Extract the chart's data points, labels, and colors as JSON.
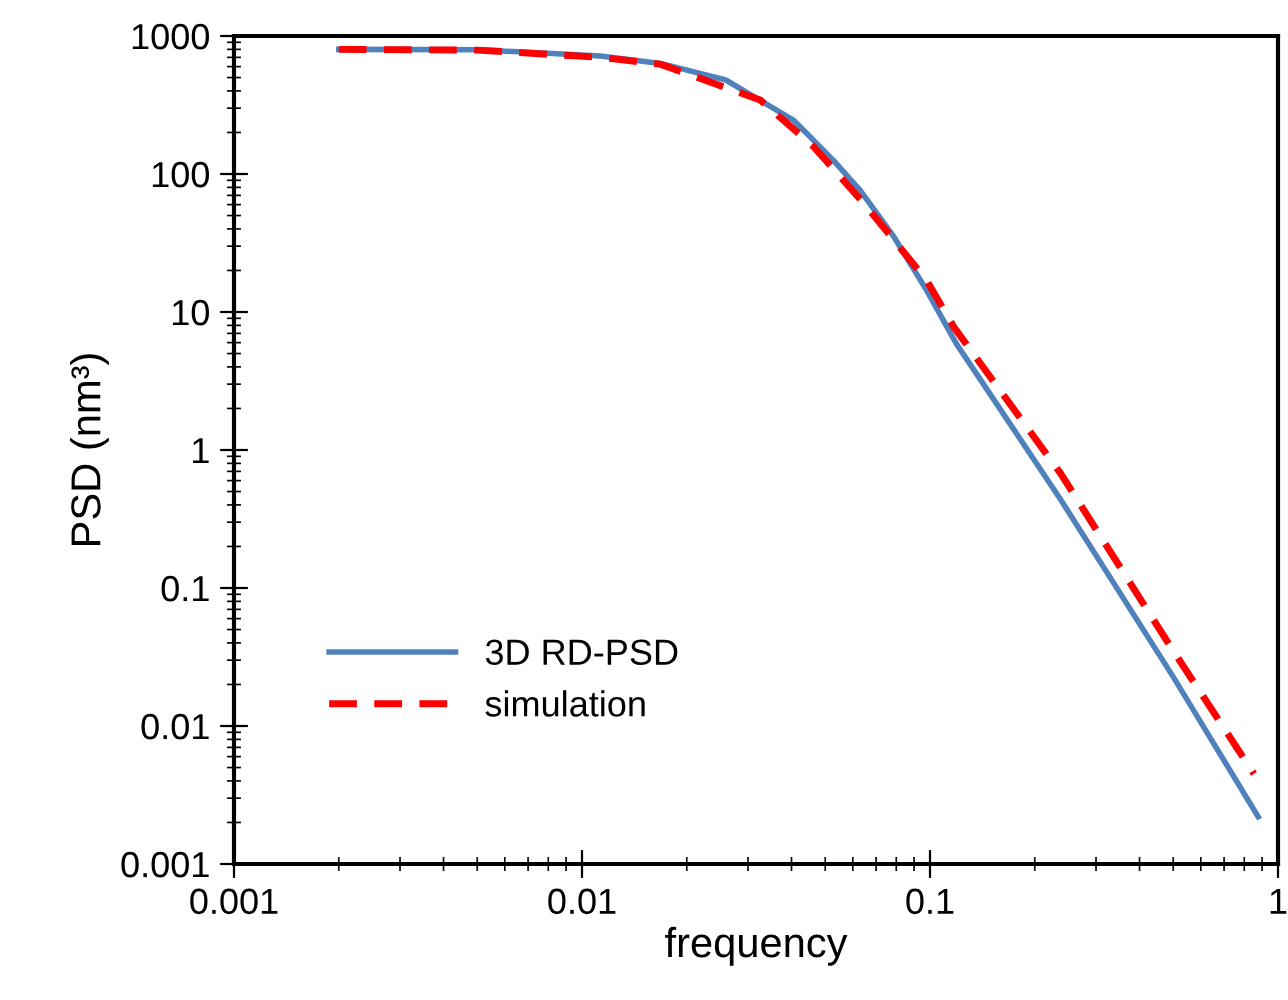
{
  "chart_data": {
    "type": "line",
    "xlabel": "frequency",
    "ylabel": "PSD (nm³)",
    "log": "xy",
    "xlim": [
      0.001,
      1
    ],
    "xticks": [
      0.001,
      0.01,
      0.1,
      1
    ],
    "ylim": [
      0.001,
      1000
    ],
    "yticks": [
      0.001,
      0.01,
      0.1,
      1,
      10,
      100,
      1000
    ],
    "grid": false,
    "legend": "bottom left",
    "marker": "none",
    "series": [
      {
        "name": "3D RD-PSD",
        "color": "#4f81bd",
        "line_style": "solid",
        "x": [
          0.002,
          0.005,
          0.0113,
          0.0168,
          0.0259,
          0.0405,
          0.0527,
          0.063,
          0.0785,
          0.0977,
          0.119,
          0.237,
          0.5,
          0.877
        ],
        "values": [
          800,
          795,
          716,
          633,
          480,
          246,
          126,
          76,
          35.5,
          14.4,
          5.9,
          0.44,
          0.0227,
          0.0022
        ]
      },
      {
        "name": "simulation",
        "color": "#ff0000",
        "line_style": "dashed",
        "x": [
          0.002,
          0.005,
          0.0113,
          0.0168,
          0.0325,
          0.0463,
          0.0658,
          0.0977,
          0.117,
          0.237,
          0.5,
          0.853
        ],
        "values": [
          800,
          790,
          700,
          625,
          344,
          158,
          58,
          17,
          7.8,
          0.68,
          0.035,
          0.0045
        ]
      }
    ]
  }
}
